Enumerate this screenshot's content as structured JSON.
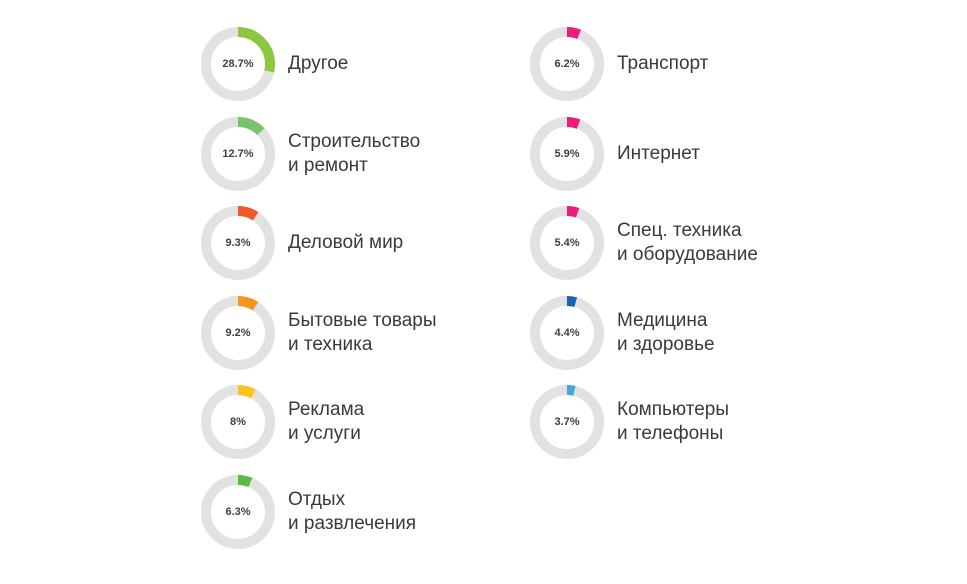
{
  "chart_data": {
    "type": "donut",
    "track_color": "#e2e2e2",
    "items": [
      {
        "label_lines": [
          "Другое"
        ],
        "value": 28.7,
        "value_label": "28.7%",
        "color": "#8dc63f"
      },
      {
        "label_lines": [
          "Строительство",
          "и ремонт"
        ],
        "value": 12.7,
        "value_label": "12.7%",
        "color": "#7ac36a"
      },
      {
        "label_lines": [
          "Деловой мир"
        ],
        "value": 9.3,
        "value_label": "9.3%",
        "color": "#ef5a28"
      },
      {
        "label_lines": [
          "Бытовые товары",
          "и техника"
        ],
        "value": 9.2,
        "value_label": "9.2%",
        "color": "#f7941d"
      },
      {
        "label_lines": [
          "Реклама",
          "и услуги"
        ],
        "value": 8,
        "value_label": "8%",
        "color": "#fcc419"
      },
      {
        "label_lines": [
          "Отдых",
          "и развлечения"
        ],
        "value": 6.3,
        "value_label": "6.3%",
        "color": "#5bb947"
      },
      {
        "label_lines": [
          "Транспорт"
        ],
        "value": 6.2,
        "value_label": "6.2%",
        "color": "#ec1e79"
      },
      {
        "label_lines": [
          "Интернет"
        ],
        "value": 5.9,
        "value_label": "5.9%",
        "color": "#ec1e79"
      },
      {
        "label_lines": [
          "Спец. техника",
          "и оборудование"
        ],
        "value": 5.4,
        "value_label": "5.4%",
        "color": "#ec1e79"
      },
      {
        "label_lines": [
          "Медицина",
          "и здоровье"
        ],
        "value": 4.4,
        "value_label": "4.4%",
        "color": "#1565b5"
      },
      {
        "label_lines": [
          "Компьютеры",
          "и телефоны"
        ],
        "value": 3.7,
        "value_label": "3.7%",
        "color": "#3fa9e0"
      }
    ]
  }
}
